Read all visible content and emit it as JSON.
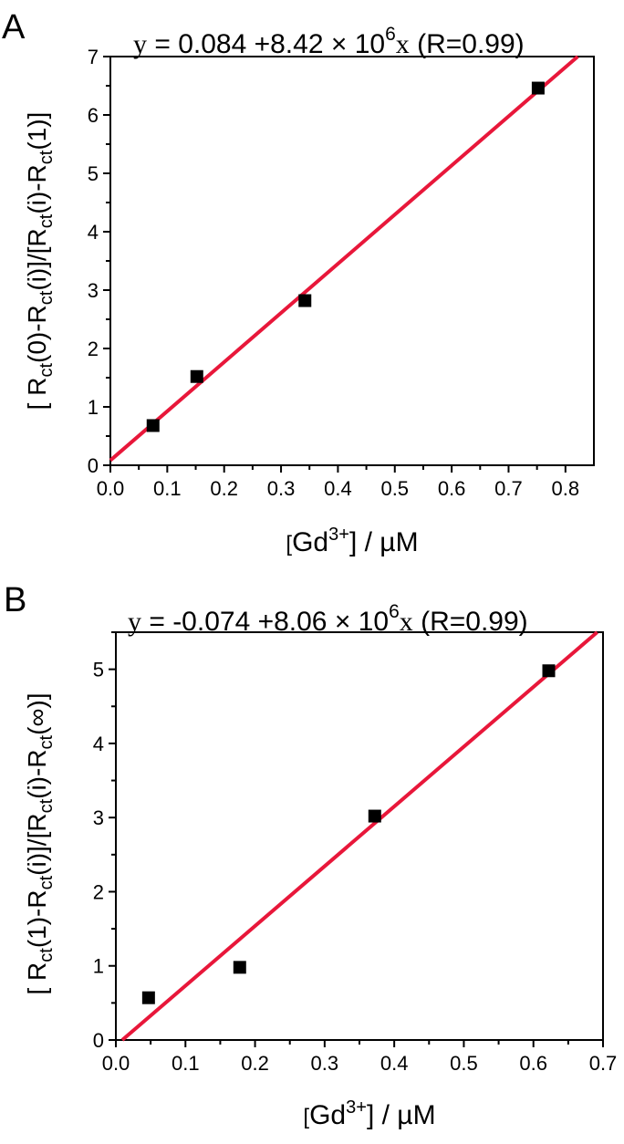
{
  "chart_data": [
    {
      "type": "scatter",
      "panel_label": "A",
      "equation": {
        "y_symbol": "y",
        "body": " = 0.084 +8.42 ×  10",
        "power": "6",
        "x_symbol": "x",
        "suffix": " (R=0.99)"
      },
      "xlabel": {
        "open": "[",
        "main": "Gd",
        "sup": "3+",
        "close": "] / µM"
      },
      "ylabel": {
        "parts": [
          {
            "t": "[ R",
            "sub": false
          },
          {
            "t": "ct",
            "sub": true
          },
          {
            "t": "(0)-R",
            "sub": false
          },
          {
            "t": "ct",
            "sub": true
          },
          {
            "t": "(i)]/[R",
            "sub": false
          },
          {
            "t": "ct",
            "sub": true
          },
          {
            "t": "(i)-R",
            "sub": false
          },
          {
            "t": "ct",
            "sub": true
          },
          {
            "t": "(1)]",
            "sub": false
          }
        ]
      },
      "xlim": [
        0.0,
        0.85
      ],
      "ylim": [
        0,
        7
      ],
      "xticks": [
        "0.0",
        "0.1",
        "0.2",
        "0.3",
        "0.4",
        "0.5",
        "0.6",
        "0.7",
        "0.8"
      ],
      "yticks": [
        "0",
        "1",
        "2",
        "3",
        "4",
        "5",
        "6",
        "7"
      ],
      "points": [
        {
          "x": 0.075,
          "y": 0.68
        },
        {
          "x": 0.152,
          "y": 1.52
        },
        {
          "x": 0.342,
          "y": 2.82
        },
        {
          "x": 0.752,
          "y": 6.46
        }
      ],
      "fit": {
        "x": [
          0.0,
          0.8216
        ],
        "y": [
          0.084,
          7.0
        ],
        "color": "#e8173a"
      },
      "marker_color": "#000000"
    },
    {
      "type": "scatter",
      "panel_label": "B",
      "equation": {
        "y_symbol": "y",
        "body": " = -0.074 +8.06 ×  10",
        "power": "6",
        "x_symbol": "x",
        "suffix": " (R=0.99)"
      },
      "xlabel": {
        "open": "[",
        "main": "Gd",
        "sup": "3+",
        "close": "] / µM"
      },
      "ylabel": {
        "parts": [
          {
            "t": "[ R",
            "sub": false
          },
          {
            "t": "ct",
            "sub": true
          },
          {
            "t": "(1)-R",
            "sub": false
          },
          {
            "t": "ct",
            "sub": true
          },
          {
            "t": "(i)]/[R",
            "sub": false
          },
          {
            "t": "ct",
            "sub": true
          },
          {
            "t": "(i)-R",
            "sub": false
          },
          {
            "t": "ct",
            "sub": true
          },
          {
            "t": "(∞)]",
            "sub": false
          }
        ]
      },
      "xlim": [
        0.0,
        0.7
      ],
      "ylim": [
        0,
        5.5
      ],
      "xticks": [
        "0.0",
        "0.1",
        "0.2",
        "0.3",
        "0.4",
        "0.5",
        "0.6",
        "0.7"
      ],
      "yticks": [
        "0",
        "1",
        "2",
        "3",
        "4",
        "5"
      ],
      "points": [
        {
          "x": 0.047,
          "y": 0.57
        },
        {
          "x": 0.178,
          "y": 0.98
        },
        {
          "x": 0.372,
          "y": 3.02
        },
        {
          "x": 0.622,
          "y": 4.98
        }
      ],
      "fit": {
        "x": [
          0.0092,
          0.6916
        ],
        "y": [
          0.0,
          5.5
        ],
        "color": "#e8173a"
      },
      "marker_color": "#000000"
    }
  ]
}
